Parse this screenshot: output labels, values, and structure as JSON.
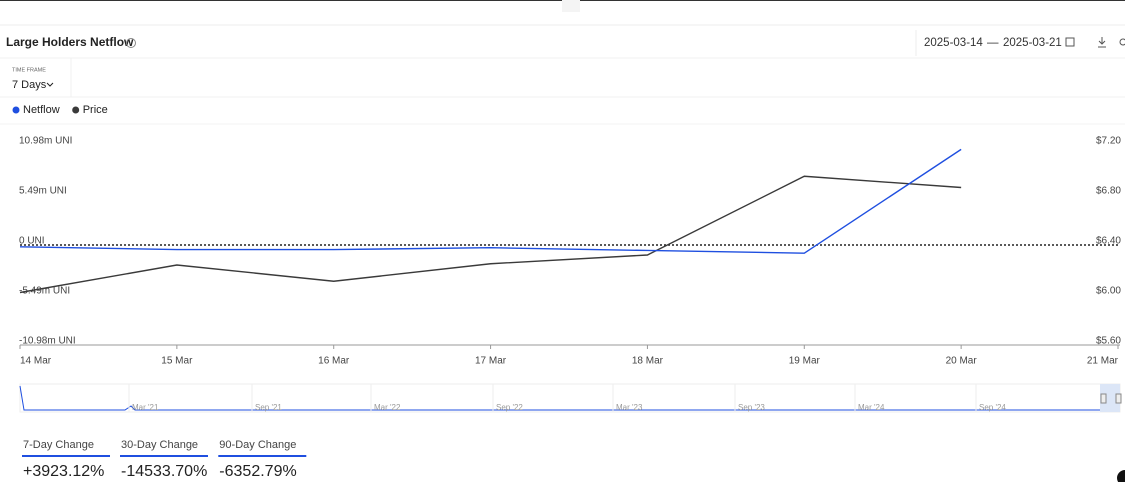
{
  "header": {
    "title": "Large Holders Netflow",
    "date_start": "2025-03-14",
    "date_separator": "—",
    "date_end": "2025-03-21"
  },
  "time_frame": {
    "label": "TIME FRAME",
    "value": "7 Days"
  },
  "chart_data": {
    "type": "line",
    "categories": [
      "14 Mar",
      "15 Mar",
      "16 Mar",
      "17 Mar",
      "18 Mar",
      "19 Mar",
      "20 Mar",
      "21 Mar"
    ],
    "series": [
      {
        "name": "Netflow",
        "color": "#1f4fe0",
        "axis": "y",
        "values": [
          -0.2,
          -0.5,
          -0.5,
          -0.3,
          -0.6,
          -0.9,
          10.5,
          null
        ]
      },
      {
        "name": "Price",
        "color": "#3a3a3a",
        "axis": "y2",
        "values": [
          6.02,
          6.24,
          6.11,
          6.25,
          6.32,
          6.95,
          6.86,
          null
        ]
      }
    ],
    "ylim": [
      -10.98,
      10.98
    ],
    "yticks": [
      {
        "value": -10.98,
        "label": "-10.98m UNI"
      },
      {
        "value": -5.49,
        "label": "-5.49m UNI"
      },
      {
        "value": 0,
        "label": "0 UNI"
      },
      {
        "value": 5.49,
        "label": "5.49m UNI"
      },
      {
        "value": 10.98,
        "label": "10.98m UNI"
      }
    ],
    "y2lim": [
      5.6,
      7.2
    ],
    "y2ticks": [
      {
        "value": 5.6,
        "label": "$5.60"
      },
      {
        "value": 6.0,
        "label": "$6.00"
      },
      {
        "value": 6.4,
        "label": "$6.40"
      },
      {
        "value": 6.8,
        "label": "$6.80"
      },
      {
        "value": 7.2,
        "label": "$7.20"
      }
    ],
    "grid": false,
    "zero_line": true
  },
  "navigator": {
    "labels": [
      "Mar '21",
      "Sep '21",
      "Mar '22",
      "Sep '22",
      "Mar '23",
      "Sep '23",
      "Mar '24",
      "Sep '24"
    ]
  },
  "stats": [
    {
      "label": "7-Day Change",
      "value": "+3923.12%"
    },
    {
      "label": "30-Day Change",
      "value": "-14533.70%"
    },
    {
      "label": "90-Day Change",
      "value": "-6352.79%"
    }
  ]
}
